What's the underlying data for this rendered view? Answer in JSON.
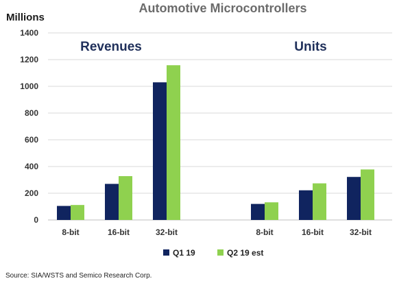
{
  "chart_data": {
    "type": "bar",
    "title": "Automotive Microcontrollers",
    "ylabel": "Millions",
    "ylim": [
      0,
      1400
    ],
    "yticks": [
      0,
      200,
      400,
      600,
      800,
      1000,
      1200,
      1400
    ],
    "grid": true,
    "legend_position": "bottom",
    "groups": [
      {
        "label": "Revenues",
        "categories": [
          "8-bit",
          "16-bit",
          "32-bit"
        ],
        "series": [
          {
            "name": "Q1 19",
            "values": [
              105,
              270,
              1030
            ]
          },
          {
            "name": "Q2 19 est",
            "values": [
              112,
              328,
              1158
            ]
          }
        ]
      },
      {
        "label": "Units",
        "categories": [
          "8-bit",
          "16-bit",
          "32-bit"
        ],
        "series": [
          {
            "name": "Q1 19",
            "values": [
              120,
              222,
              322
            ]
          },
          {
            "name": "Q2 19 est",
            "values": [
              132,
              274,
              378
            ]
          }
        ]
      }
    ],
    "colors": {
      "Q1 19": "#10245f",
      "Q2 19 est": "#8fd14f"
    },
    "source": "Source:  SIA/WSTS and Semico Research Corp."
  }
}
